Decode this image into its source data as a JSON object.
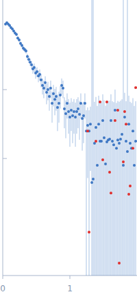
{
  "chart_data": {
    "type": "scatter",
    "log": "y",
    "tick_labels": "x",
    "grid": false,
    "xlim": [
      0,
      2
    ],
    "xticks": [
      0,
      1
    ],
    "ylim": [
      0.002,
      20
    ],
    "yticks": [
      0.1,
      1
    ],
    "series": [
      {
        "color": "#3f78c4",
        "marker": "circle",
        "x": [
          0.041,
          0.061,
          0.082,
          0.102,
          0.122,
          0.143,
          0.163,
          0.184,
          0.204,
          0.224,
          0.245,
          0.265,
          0.286,
          0.306,
          0.327,
          0.347,
          0.367,
          0.388,
          0.408,
          0.429,
          0.449,
          0.469,
          0.49,
          0.51,
          0.531,
          0.551,
          0.571,
          0.592,
          0.612,
          0.633,
          0.653,
          0.673,
          0.694,
          0.714,
          0.735,
          0.755,
          0.776,
          0.796,
          0.816,
          0.837,
          0.857,
          0.878,
          0.898,
          0.918,
          0.939,
          0.959,
          0.98,
          1.0,
          1.02,
          1.041,
          1.061,
          1.082,
          1.102,
          1.122,
          1.143,
          1.163,
          1.184,
          1.204,
          1.224,
          1.245,
          1.265,
          1.286,
          1.306,
          1.327,
          1.347,
          1.367,
          1.388,
          1.408,
          1.429,
          1.449,
          1.469,
          1.49,
          1.51,
          1.531,
          1.551,
          1.571,
          1.592,
          1.612,
          1.633,
          1.653,
          1.673,
          1.694,
          1.714,
          1.735,
          1.755,
          1.776,
          1.796,
          1.816,
          1.837,
          1.857,
          1.878,
          1.898,
          1.918,
          1.939,
          1.959,
          1.98
        ],
        "values": [
          8.91,
          9.33,
          8.91,
          8.51,
          7.94,
          7.59,
          7.08,
          6.61,
          6.31,
          5.62,
          5.25,
          4.68,
          4.37,
          3.98,
          3.8,
          3.63,
          3.02,
          2.75,
          2.51,
          2.29,
          2.0,
          2.09,
          1.74,
          1.82,
          1.58,
          1.66,
          1.38,
          1.15,
          1.05,
          1.26,
          0.912,
          1.0,
          0.794,
          1.05,
          0.631,
          0.871,
          0.724,
          0.794,
          0.55,
          0.631,
          0.832,
          1.15,
          1.05,
          0.525,
          0.447,
          0.631,
          0.479,
          0.398,
          0.501,
          0.417,
          0.479,
          0.398,
          0.479,
          0.525,
          0.437,
          0.631,
          0.38,
          0.417,
          0.631,
          0.251,
          0.302,
          0.251,
          0.316,
          0.0447,
          0.0501,
          0.166,
          0.282,
          0.0794,
          0.316,
          0.178,
          0.178,
          0.355,
          0.2,
          0.0832,
          0.174,
          0.186,
          0.191,
          0.355,
          0.178,
          0.158,
          0.501,
          0.141,
          0.186,
          0.166,
          0.191,
          0.224,
          0.0794,
          0.398,
          0.178,
          0.126,
          0.316,
          0.166,
          0.141,
          0.251,
          0.0794,
          0.178
        ],
        "errors": [
          0.3,
          0.3,
          0.3,
          0.3,
          0.3,
          0.3,
          0.3,
          0.3,
          0.3,
          0.3,
          0.3,
          0.3,
          0.3,
          0.3,
          0.3,
          0.3,
          0.3,
          0.3,
          0.3,
          0.3,
          0.3,
          0.3,
          0.3,
          0.3,
          0.3,
          0.3,
          0.3,
          0.3,
          0.3,
          0.3,
          0.3,
          0.3,
          0.3,
          0.3,
          0.3,
          0.3,
          0.3,
          0.3,
          0.3,
          0.3,
          0.3,
          0.3,
          0.3,
          0.25,
          0.25,
          0.25,
          0.25,
          0.25,
          0.25,
          0.25,
          0.25,
          0.25,
          0.25,
          0.25,
          0.25,
          0.25,
          0.25,
          0.25,
          0.25,
          0.25,
          0.25,
          0.25,
          0.25,
          20,
          20,
          0.5,
          0.5,
          0.5,
          0.5,
          0.5,
          0.5,
          0.5,
          0.5,
          0.5,
          0.5,
          0.5,
          0.5,
          0.5,
          0.5,
          0.5,
          0.5,
          0.5,
          0.5,
          0.5,
          0.5,
          0.5,
          20,
          0.5,
          0.5,
          20,
          0.5,
          0.5,
          0.5,
          0.5,
          0.5,
          0.5
        ]
      },
      {
        "color": "#e0302f",
        "marker": "circle",
        "x": [
          1.265,
          1.286,
          1.388,
          1.449,
          1.49,
          1.551,
          1.592,
          1.612,
          1.673,
          1.714,
          1.735,
          1.796,
          1.816,
          1.837,
          1.878,
          1.898,
          1.939,
          1.98
        ],
        "values": [
          0.251,
          0.00851,
          0.178,
          0.661,
          0.0955,
          0.661,
          0.0631,
          0.0316,
          0.355,
          0.501,
          0.00302,
          0.0891,
          0.479,
          0.316,
          0.0302,
          0.0398,
          0.141,
          1.07
        ]
      }
    ]
  }
}
